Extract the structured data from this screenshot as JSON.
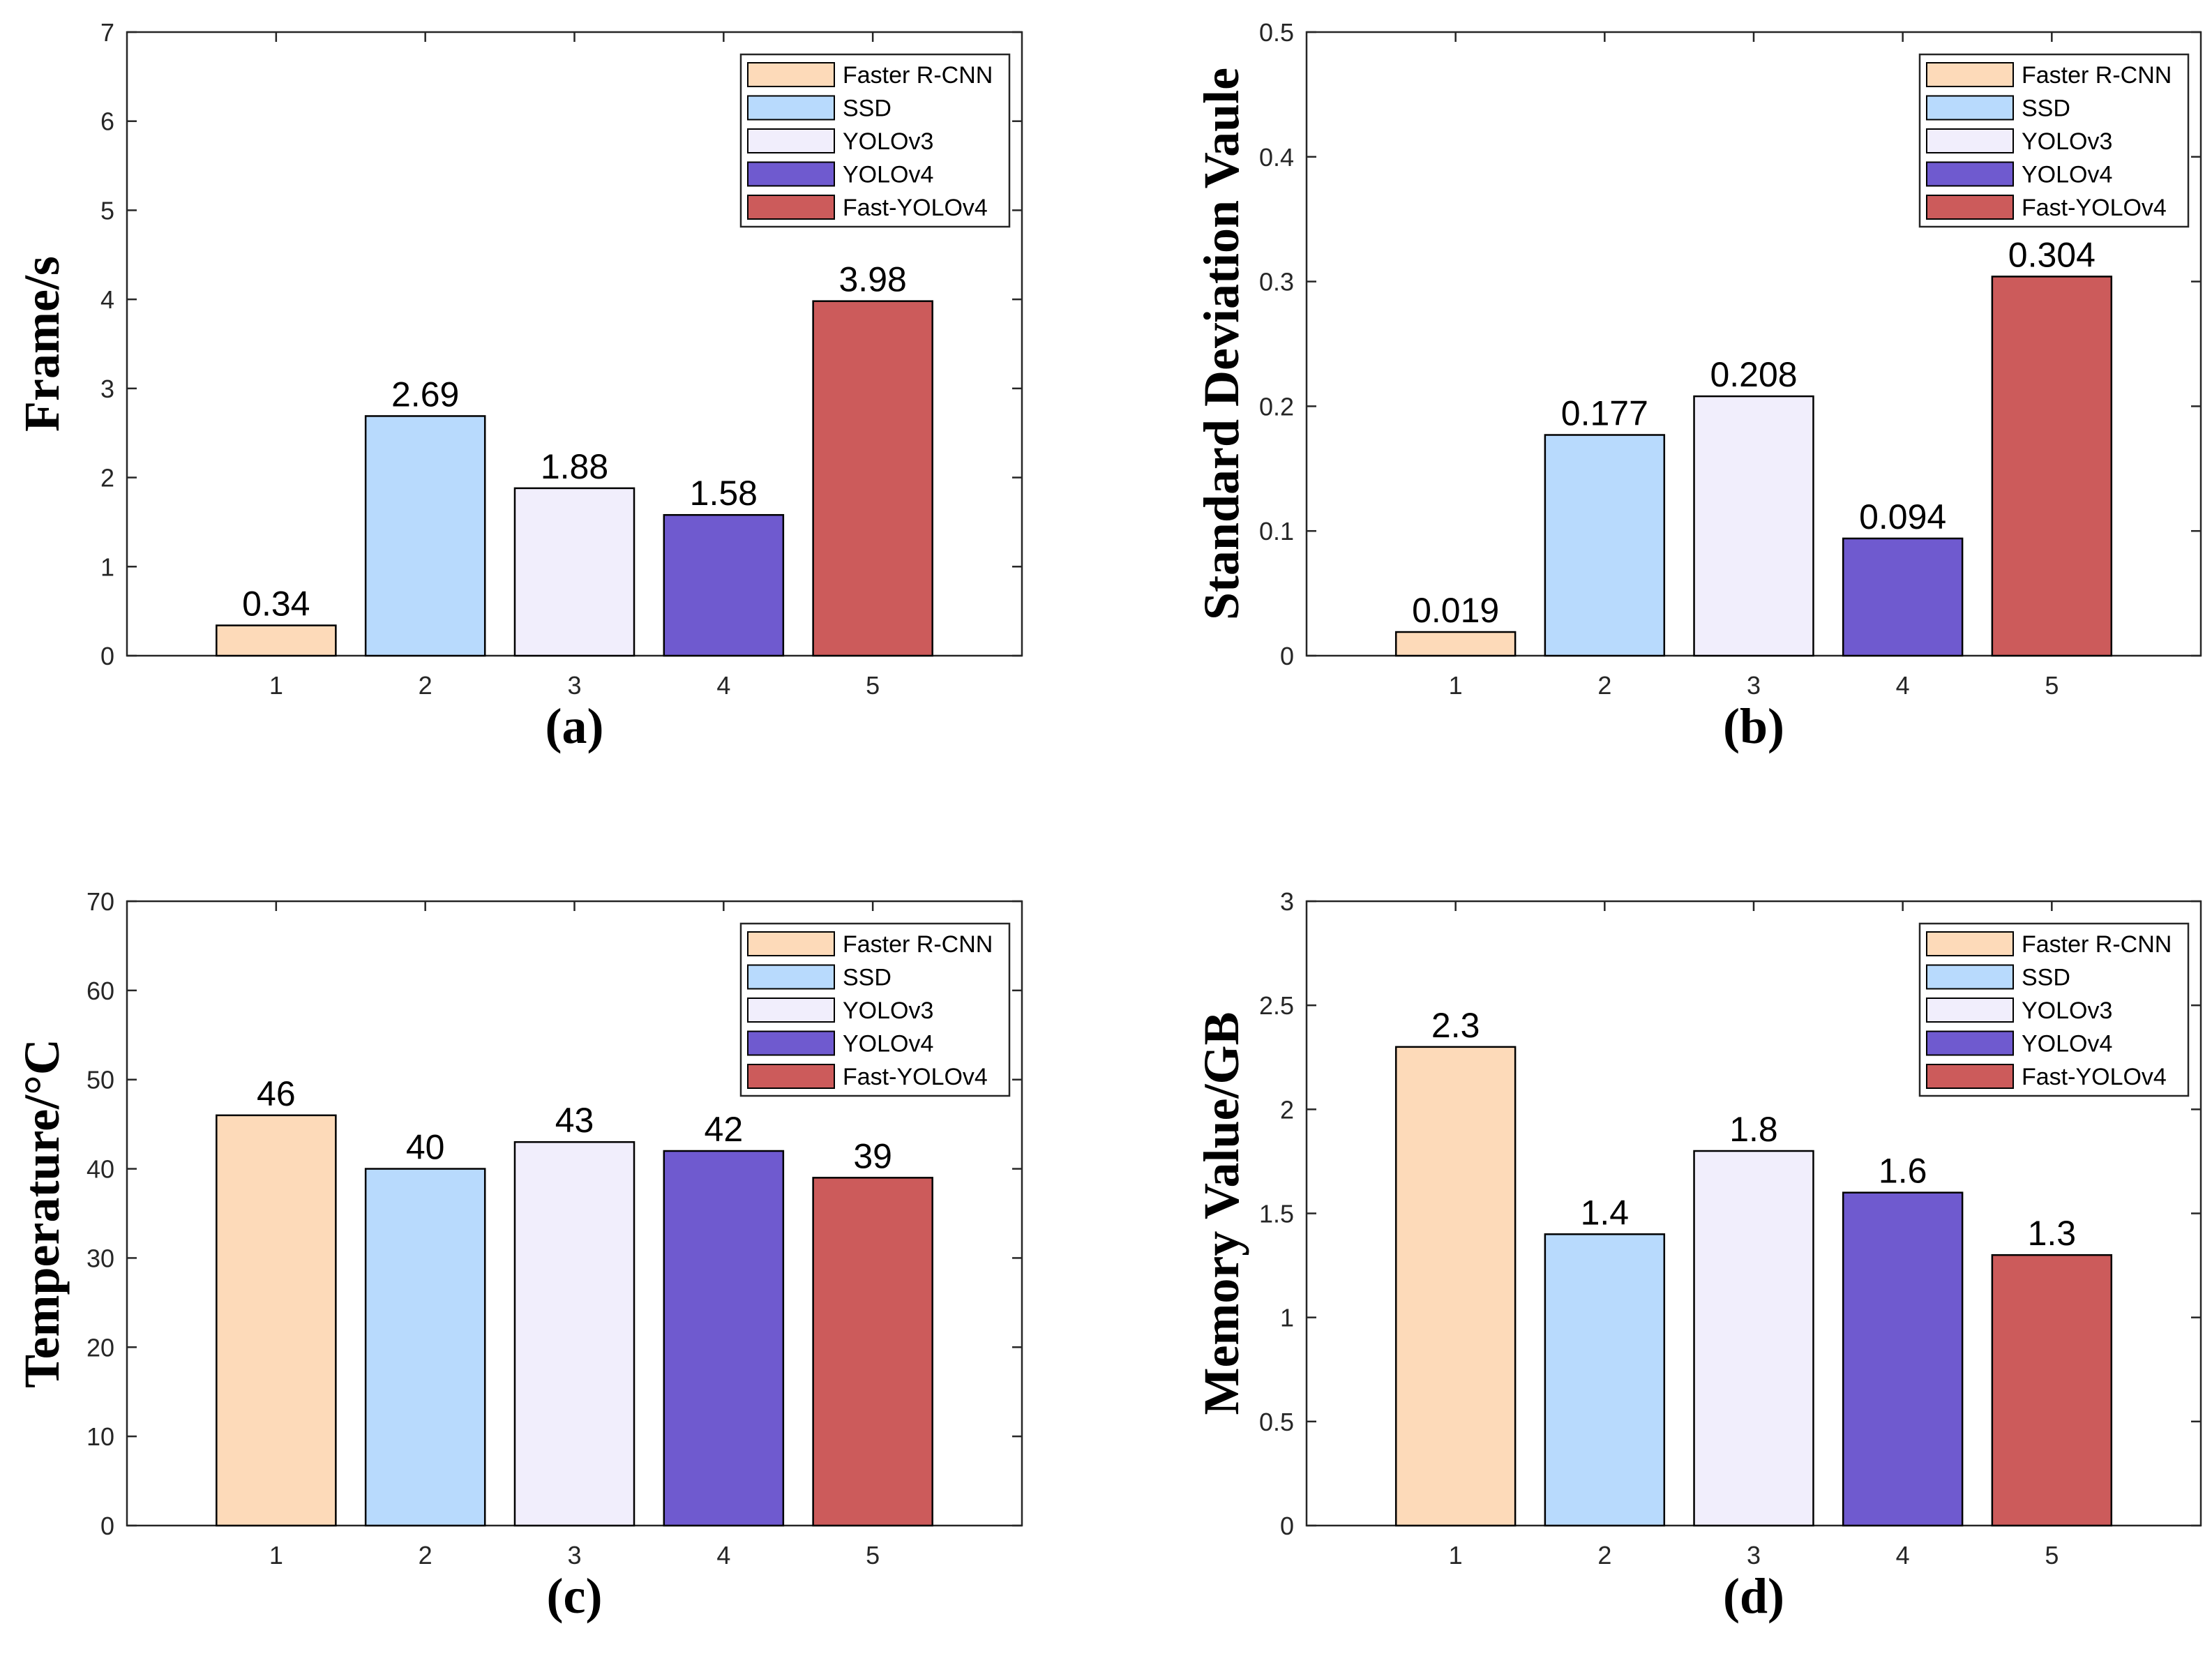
{
  "legend_entries": [
    {
      "name": "Faster R-CNN",
      "color": "#FDDAB9"
    },
    {
      "name": "SSD",
      "color": "#B8DAFD"
    },
    {
      "name": "YOLOv3",
      "color": "#F1EEFC"
    },
    {
      "name": "YOLOv4",
      "color": "#6F5ACF"
    },
    {
      "name": "Fast-YOLOv4",
      "color": "#CC5B5B"
    }
  ],
  "chart_data": [
    {
      "type": "bar",
      "caption": "(a)",
      "ylabel": "Frame/s",
      "xlabel": "",
      "categories": [
        "1",
        "2",
        "3",
        "4",
        "5"
      ],
      "values": [
        0.34,
        2.69,
        1.88,
        1.58,
        3.98
      ],
      "value_labels": [
        "0.34",
        "2.69",
        "1.88",
        "1.58",
        "3.98"
      ],
      "ylim": [
        0,
        7
      ],
      "yticks": [
        "0",
        "1",
        "2",
        "3",
        "4",
        "5",
        "6",
        "7"
      ],
      "grid": false,
      "legend_position": "top-right"
    },
    {
      "type": "bar",
      "caption": "(b)",
      "ylabel": "Standard Deviation Vaule",
      "xlabel": "",
      "categories": [
        "1",
        "2",
        "3",
        "4",
        "5"
      ],
      "values": [
        0.019,
        0.177,
        0.208,
        0.094,
        0.304
      ],
      "value_labels": [
        "0.019",
        "0.177",
        "0.208",
        "0.094",
        "0.304"
      ],
      "ylim": [
        0,
        0.5
      ],
      "yticks": [
        "0",
        "0.1",
        "0.2",
        "0.3",
        "0.4",
        "0.5"
      ],
      "grid": false,
      "legend_position": "top-right"
    },
    {
      "type": "bar",
      "caption": "(c)",
      "ylabel": "Temperature/°C",
      "xlabel": "",
      "categories": [
        "1",
        "2",
        "3",
        "4",
        "5"
      ],
      "values": [
        46,
        40,
        43,
        42,
        39
      ],
      "value_labels": [
        "46",
        "40",
        "43",
        "42",
        "39"
      ],
      "ylim": [
        0,
        70
      ],
      "yticks": [
        "0",
        "10",
        "20",
        "30",
        "40",
        "50",
        "60",
        "70"
      ],
      "grid": false,
      "legend_position": "top-right"
    },
    {
      "type": "bar",
      "caption": "(d)",
      "ylabel": "Memory Value/GB",
      "xlabel": "",
      "categories": [
        "1",
        "2",
        "3",
        "4",
        "5"
      ],
      "values": [
        2.3,
        1.4,
        1.8,
        1.6,
        1.3
      ],
      "value_labels": [
        "2.3",
        "1.4",
        "1.8",
        "1.6",
        "1.3"
      ],
      "ylim": [
        0,
        3
      ],
      "yticks": [
        "0",
        "0.5",
        "1",
        "1.5",
        "2",
        "2.5",
        "3"
      ],
      "grid": false,
      "legend_position": "top-right"
    }
  ]
}
